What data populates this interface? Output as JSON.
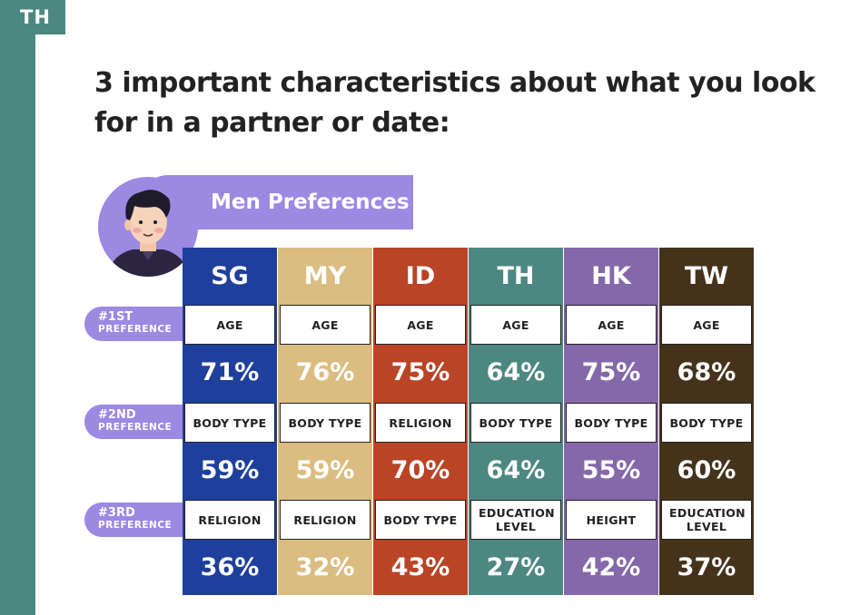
{
  "tag": "TH",
  "title": "3 important characteristics about what you look for in a partner or date:",
  "banner": "Men Preferences",
  "preferences": [
    {
      "rank": "#1ST",
      "word": "PREFERENCE"
    },
    {
      "rank": "#2ND",
      "word": "PREFERENCE"
    },
    {
      "rank": "#3RD",
      "word": "PREFERENCE"
    }
  ],
  "colors": {
    "SG": "#1f3f9c",
    "MY": "#dbbd82",
    "ID": "#b94426",
    "TH": "#4d8782",
    "HK": "#8568a9",
    "TW": "#45321b",
    "accent": "#9b89e2",
    "sidebar": "#4d8782"
  },
  "regions": [
    {
      "code": "SG",
      "rows": [
        {
          "trait": "AGE",
          "pct": "71%"
        },
        {
          "trait": "BODY TYPE",
          "pct": "59%"
        },
        {
          "trait": "RELIGION",
          "pct": "36%"
        }
      ]
    },
    {
      "code": "MY",
      "rows": [
        {
          "trait": "AGE",
          "pct": "76%"
        },
        {
          "trait": "BODY TYPE",
          "pct": "59%"
        },
        {
          "trait": "RELIGION",
          "pct": "32%"
        }
      ]
    },
    {
      "code": "ID",
      "rows": [
        {
          "trait": "AGE",
          "pct": "75%"
        },
        {
          "trait": "RELIGION",
          "pct": "70%"
        },
        {
          "trait": "BODY TYPE",
          "pct": "43%"
        }
      ]
    },
    {
      "code": "TH",
      "rows": [
        {
          "trait": "AGE",
          "pct": "64%"
        },
        {
          "trait": "BODY TYPE",
          "pct": "64%"
        },
        {
          "trait": "EDUCATION LEVEL",
          "pct": "27%"
        }
      ]
    },
    {
      "code": "HK",
      "rows": [
        {
          "trait": "AGE",
          "pct": "75%"
        },
        {
          "trait": "BODY TYPE",
          "pct": "55%"
        },
        {
          "trait": "HEIGHT",
          "pct": "42%"
        }
      ]
    },
    {
      "code": "TW",
      "rows": [
        {
          "trait": "AGE",
          "pct": "68%"
        },
        {
          "trait": "BODY TYPE",
          "pct": "60%"
        },
        {
          "trait": "EDUCATION LEVEL",
          "pct": "37%"
        }
      ]
    }
  ]
}
